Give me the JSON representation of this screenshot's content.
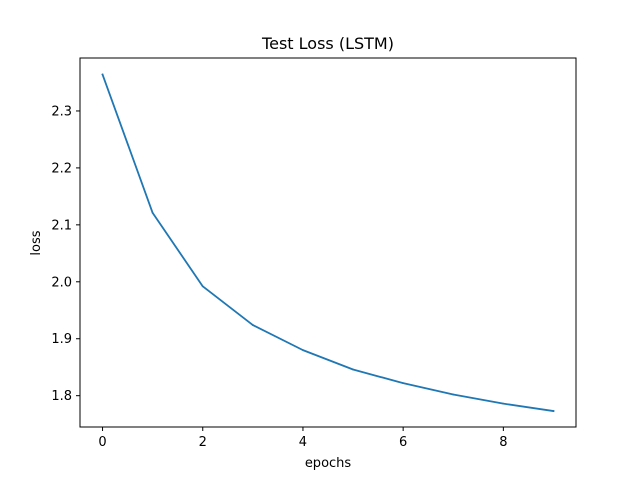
{
  "chart_data": {
    "type": "line",
    "title": "Test Loss (LSTM)",
    "xlabel": "epochs",
    "ylabel": "loss",
    "xlim": [
      -0.45,
      9.45
    ],
    "ylim": [
      1.745,
      2.393
    ],
    "xticks": [
      0,
      2,
      4,
      6,
      8
    ],
    "xtick_labels": [
      "0",
      "2",
      "4",
      "6",
      "8"
    ],
    "yticks": [
      1.8,
      1.9,
      2.0,
      2.1,
      2.2,
      2.3
    ],
    "ytick_labels": [
      "1.8",
      "1.9",
      "2.0",
      "2.1",
      "2.2",
      "2.3"
    ],
    "grid": false,
    "series": [
      {
        "color": "#1f77b4",
        "x": [
          0,
          1,
          2,
          3,
          4,
          5,
          6,
          7,
          8,
          9
        ],
        "y": [
          2.364,
          2.121,
          1.992,
          1.924,
          1.88,
          1.846,
          1.822,
          1.802,
          1.786,
          1.773
        ]
      }
    ]
  }
}
